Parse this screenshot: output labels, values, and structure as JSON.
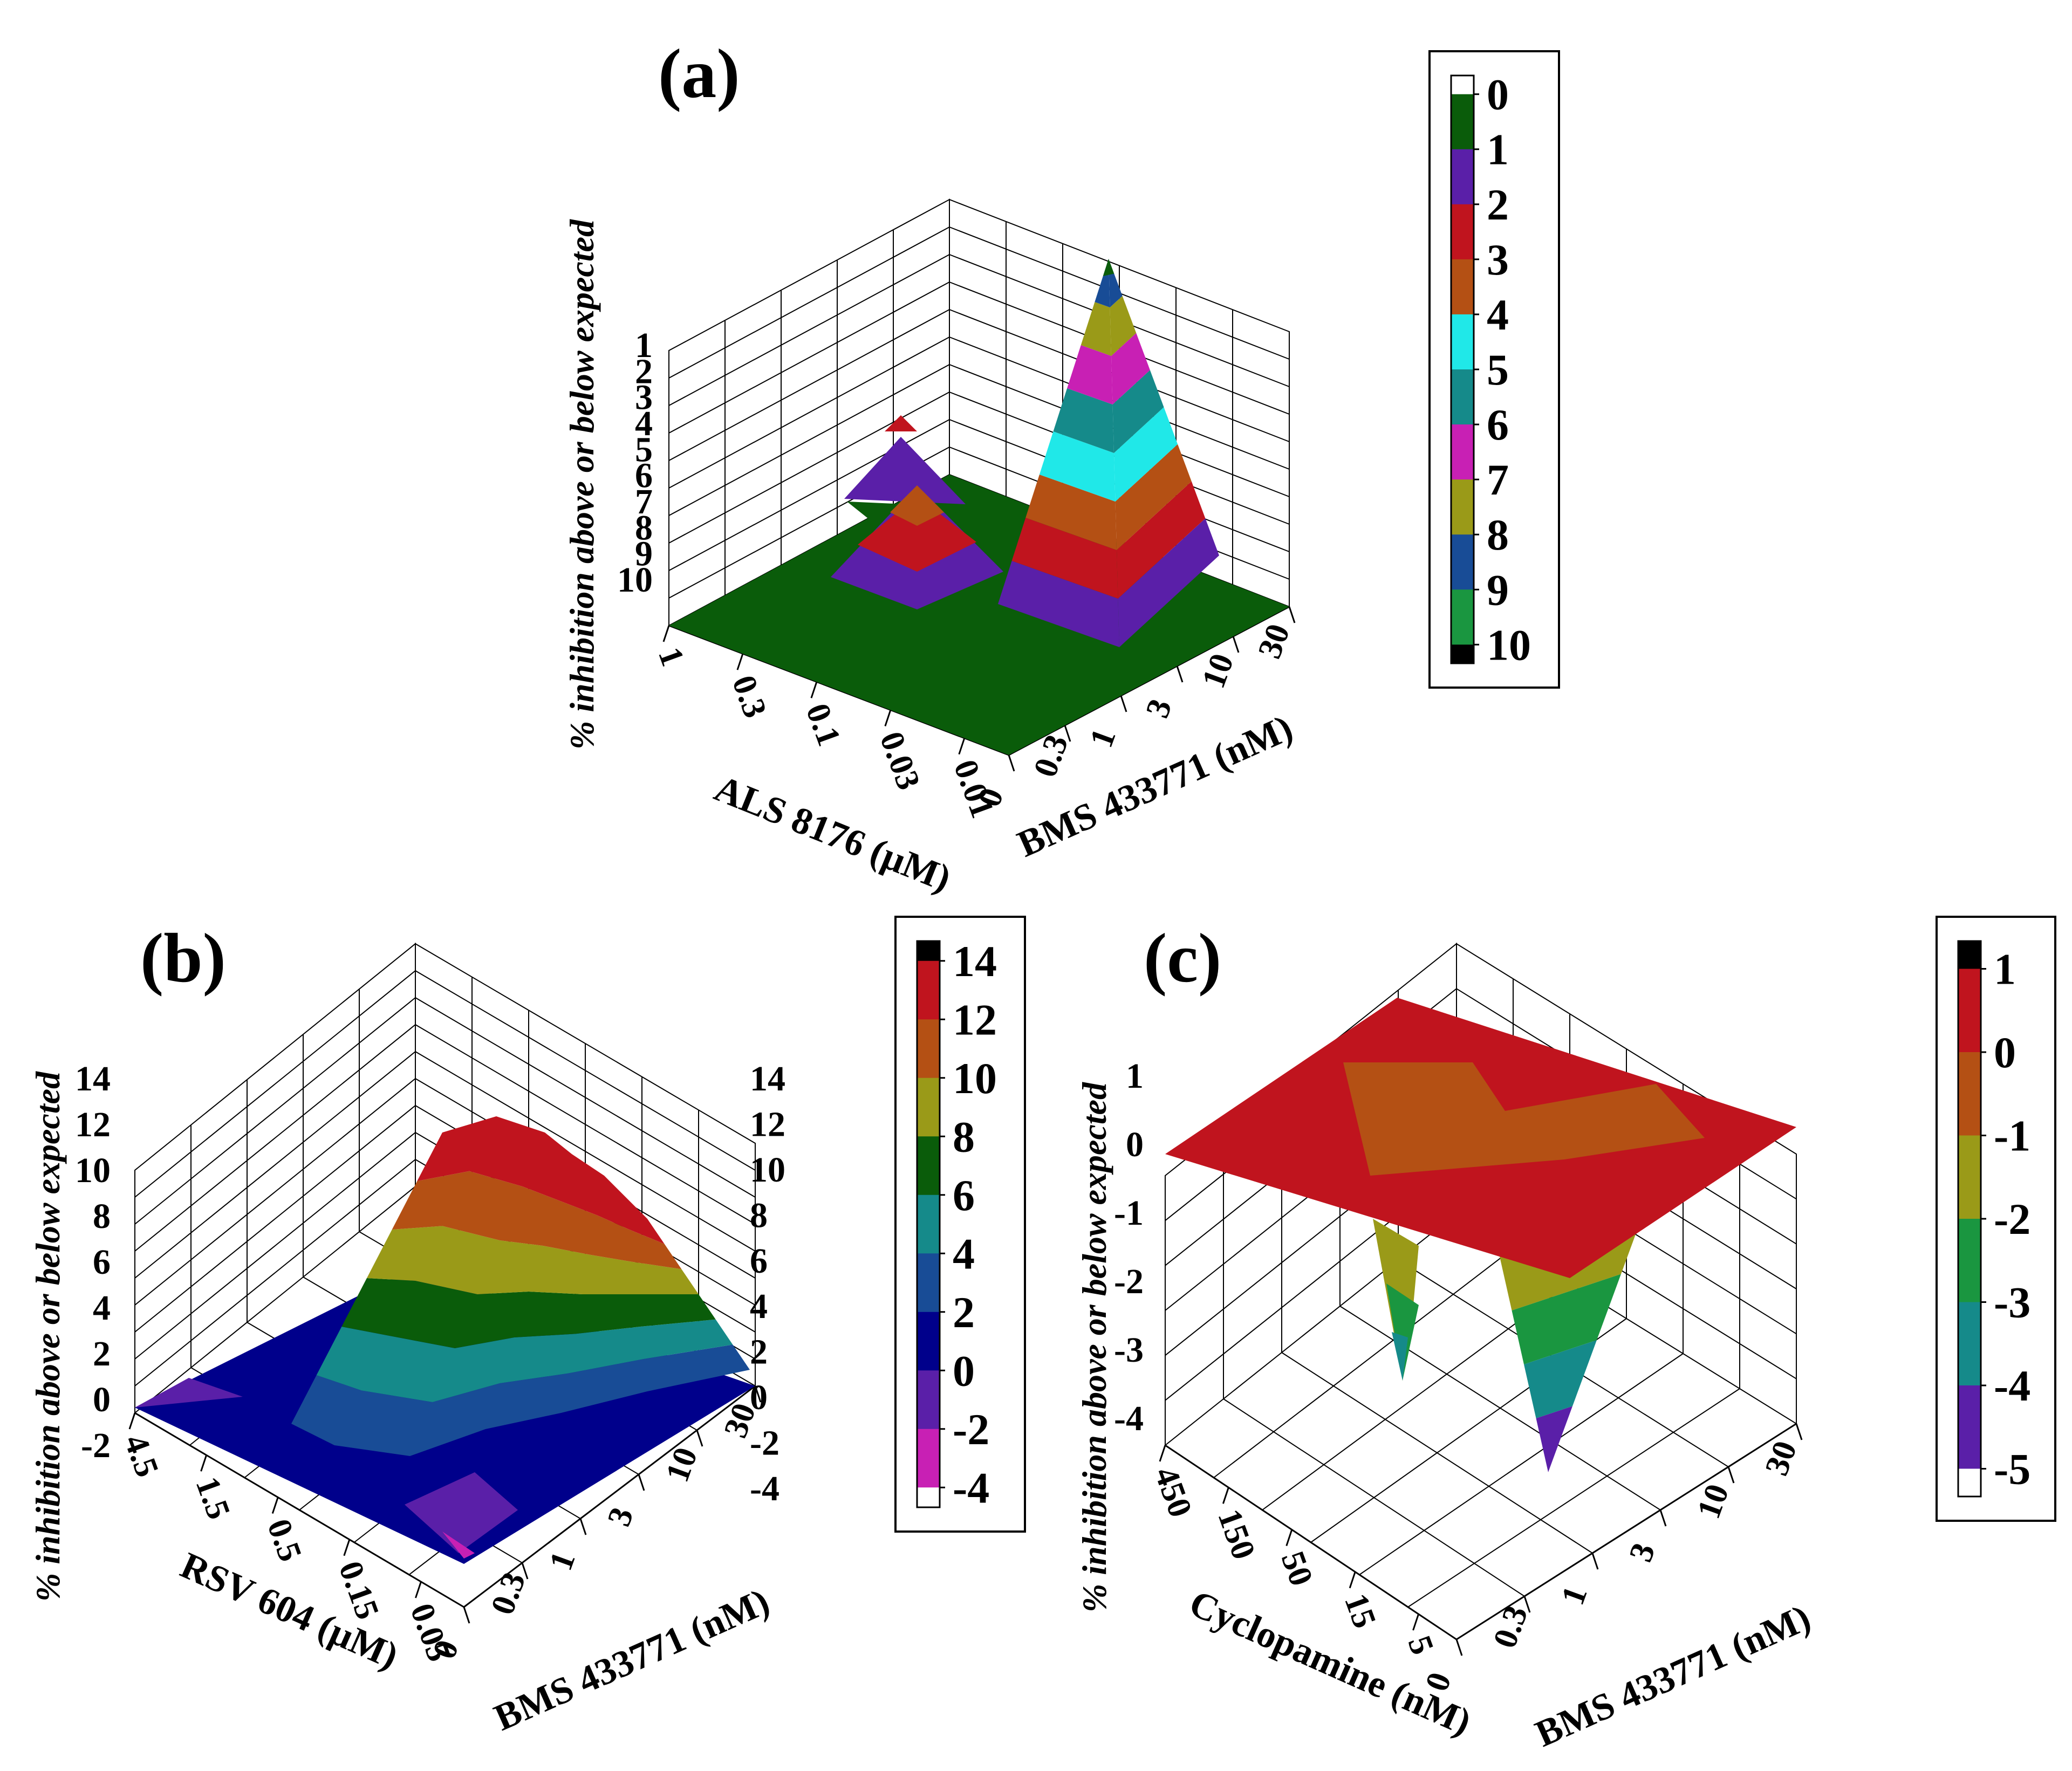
{
  "figure": {
    "zlabel": "% inhibition above or below expected",
    "panels": [
      {
        "id": "a",
        "label": "(a)"
      },
      {
        "id": "b",
        "label": "(b)"
      },
      {
        "id": "c",
        "label": "(c)"
      }
    ]
  },
  "chart_data": [
    {
      "id": "a",
      "type": "surface3d",
      "title": "(a)",
      "xlabel": "ALS 8176 (µM)",
      "ylabel": "BMS 433771 (nM)",
      "zlabel": "% inhibition above or below expected",
      "x_ticks": [
        "1",
        "0.3",
        "0.1",
        "0.03",
        "0.01"
      ],
      "y_ticks": [
        "0",
        "0.3",
        "1",
        "3",
        "10",
        "30"
      ],
      "z_ticks": [
        "1",
        "2",
        "3",
        "4",
        "5",
        "6",
        "7",
        "8",
        "9",
        "10"
      ],
      "zlim": [
        0,
        10
      ],
      "peaks": [
        {
          "x": "0.03",
          "y": "0.3",
          "value": 3.5
        },
        {
          "x": "0.1",
          "y": "0",
          "value": 5
        },
        {
          "x": "0.01",
          "y": "3",
          "value": 9.5
        }
      ],
      "legend": {
        "labels": [
          "0",
          "1",
          "2",
          "3",
          "4",
          "5",
          "6",
          "7",
          "8",
          "9",
          "10"
        ],
        "colors": [
          "#ffffff",
          "#0a5c0a",
          "#5a1fa8",
          "#c0141e",
          "#b45014",
          "#20e8e8",
          "#158a8a",
          "#c820b4",
          "#9a9a18",
          "#184c96",
          "#1a9640",
          "#000000"
        ]
      }
    },
    {
      "id": "b",
      "type": "surface3d",
      "title": "(b)",
      "xlabel": "RSV 604 (µM)",
      "ylabel": "BMS 433771 (nM)",
      "zlabel": "% inhibition above or below expected",
      "x_ticks": [
        "4.5",
        "1.5",
        "0.5",
        "0.15",
        "0.05"
      ],
      "y_ticks": [
        "0",
        "0.3",
        "1",
        "3",
        "10",
        "30"
      ],
      "z_ticks": [
        "14",
        "12",
        "10",
        "8",
        "6",
        "4",
        "2",
        "0",
        "-2"
      ],
      "z_ticks_right": [
        "14",
        "12",
        "10",
        "8",
        "6",
        "4",
        "2",
        "0",
        "-2",
        "-4"
      ],
      "zlim": [
        -4,
        14
      ],
      "peaks": [
        {
          "x": "0.05",
          "y": "3",
          "value": 14
        },
        {
          "x": "0.05",
          "y": "0",
          "value": -4
        }
      ],
      "legend": {
        "labels": [
          "14",
          "12",
          "10",
          "8",
          "6",
          "4",
          "2",
          "0",
          "-2",
          "-4"
        ],
        "colors": [
          "#000000",
          "#c0141e",
          "#b45014",
          "#9a9a18",
          "#0a5c0a",
          "#158a8a",
          "#184c96",
          "#00008b",
          "#5a1fa8",
          "#c820b4",
          "#ffffff"
        ]
      }
    },
    {
      "id": "c",
      "type": "surface3d",
      "title": "(c)",
      "xlabel": "Cyclopamine (nM)",
      "ylabel": "BMS 433771 (nM)",
      "zlabel": "% inhibition above or below expected",
      "x_ticks": [
        "450",
        "150",
        "50",
        "15",
        "5"
      ],
      "y_ticks": [
        "0",
        "0.3",
        "1",
        "3",
        "10",
        "30"
      ],
      "z_ticks": [
        "1",
        "0",
        "-1",
        "-2",
        "-3",
        "-4"
      ],
      "zlim": [
        -5,
        1
      ],
      "peaks": [
        {
          "x": "5",
          "y": "0.3",
          "value": -5
        },
        {
          "x": "15",
          "y": "0",
          "value": -4
        }
      ],
      "legend": {
        "labels": [
          "1",
          "0",
          "-1",
          "-2",
          "-3",
          "-4",
          "-5"
        ],
        "colors": [
          "#000000",
          "#c0141e",
          "#b45014",
          "#9a9a18",
          "#1a9640",
          "#158a8a",
          "#5a1fa8",
          "#ffffff"
        ]
      }
    }
  ]
}
